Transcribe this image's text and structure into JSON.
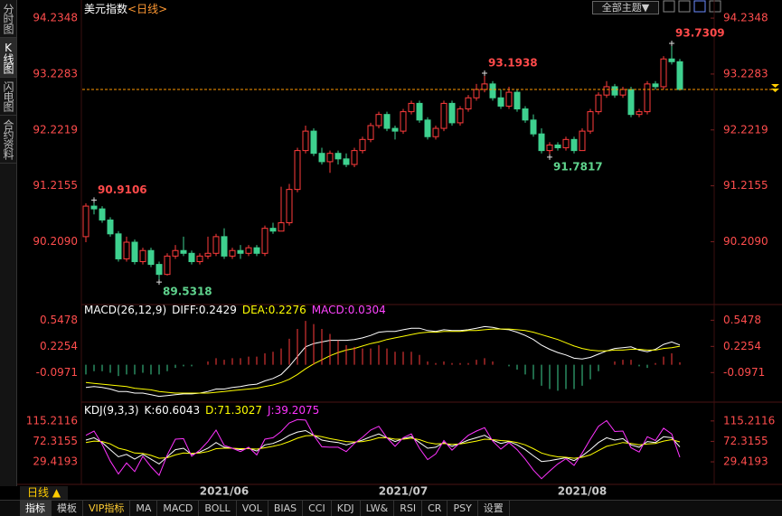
{
  "ui": {
    "title": "美元指数",
    "period": "<日线>",
    "theme_button": "全部主题▼",
    "sidebar": [
      "分时图",
      "K线图",
      "闪电图",
      "合约资料"
    ],
    "period_switch": "日线 ▲",
    "tabs": [
      "指标",
      "模板",
      "VIP指标",
      "MA",
      "MACD",
      "BOLL",
      "VOL",
      "BIAS",
      "CCI",
      "KDJ",
      "LW&",
      "RSI",
      "CR",
      "PSY",
      "设置"
    ]
  },
  "chart_data": [
    {
      "type": "candlestick",
      "up_color": "#ff3c3c",
      "down_color": "#3ed18f",
      "last_price_color": "#ff9900",
      "ylim": [
        89.11,
        94.48
      ],
      "yticks": [
        94.2348,
        93.2283,
        92.2219,
        91.2155,
        {
          "value": 90.209,
          "label": "90.2090"
        }
      ],
      "categories": [
        null,
        null,
        null,
        null,
        null,
        null,
        null,
        null,
        null,
        null,
        null,
        null,
        null,
        null,
        null,
        null,
        null,
        "2021/06",
        null,
        null,
        null,
        null,
        null,
        null,
        null,
        null,
        null,
        null,
        null,
        null,
        null,
        null,
        null,
        null,
        null,
        null,
        null,
        null,
        null,
        "2021/07",
        null,
        null,
        null,
        null,
        null,
        null,
        null,
        null,
        null,
        null,
        null,
        null,
        null,
        null,
        null,
        null,
        null,
        null,
        null,
        null,
        null,
        "2021/08",
        null,
        null,
        null,
        null,
        null,
        null,
        null,
        null,
        null,
        null,
        null,
        null
      ],
      "open": [
        90.3,
        90.85,
        90.8,
        90.6,
        90.35,
        89.9,
        90.2,
        89.85,
        90.05,
        89.8,
        89.62,
        89.95,
        90.05,
        90.0,
        89.85,
        89.95,
        90.0,
        90.3,
        89.95,
        90.05,
        90.0,
        90.1,
        90.0,
        90.45,
        90.4,
        90.55,
        91.15,
        91.85,
        92.2,
        91.8,
        91.65,
        91.8,
        91.7,
        91.6,
        91.85,
        92.05,
        92.3,
        92.5,
        92.25,
        92.2,
        92.55,
        92.7,
        92.4,
        92.1,
        92.25,
        92.7,
        92.35,
        92.6,
        92.8,
        92.95,
        93.05,
        92.8,
        92.65,
        92.9,
        92.6,
        92.4,
        92.15,
        91.85,
        91.95,
        91.9,
        92.05,
        91.85,
        92.2,
        92.55,
        92.85,
        93.0,
        92.85,
        92.95,
        92.5,
        92.55,
        93.05,
        93.0,
        93.5,
        93.45
      ],
      "high": [
        90.9,
        90.9106,
        90.85,
        90.65,
        90.4,
        90.3,
        90.25,
        90.1,
        90.1,
        89.85,
        90.0,
        90.15,
        90.3,
        90.05,
        90.0,
        90.3,
        90.35,
        90.45,
        90.1,
        90.15,
        90.15,
        90.15,
        90.5,
        90.55,
        91.2,
        91.25,
        91.9,
        92.3,
        92.25,
        91.9,
        91.85,
        91.85,
        91.8,
        91.9,
        92.1,
        92.35,
        92.55,
        92.55,
        92.3,
        92.6,
        92.75,
        92.75,
        92.45,
        92.3,
        92.75,
        92.75,
        92.65,
        92.85,
        93.05,
        93.1938,
        93.1,
        92.95,
        93.0,
        92.95,
        92.65,
        92.5,
        92.25,
        92.0,
        92.0,
        92.1,
        92.1,
        92.25,
        92.6,
        92.9,
        93.1,
        93.05,
        93.0,
        93.0,
        92.6,
        93.1,
        93.1,
        93.55,
        93.7309,
        93.5
      ],
      "low": [
        90.2,
        90.7,
        90.55,
        90.3,
        89.85,
        89.85,
        89.8,
        89.8,
        89.75,
        89.5318,
        89.6,
        89.9,
        89.95,
        89.8,
        89.8,
        89.9,
        89.95,
        89.9,
        89.9,
        89.9,
        89.95,
        89.95,
        89.95,
        90.35,
        90.4,
        90.5,
        91.1,
        91.8,
        91.75,
        91.6,
        91.45,
        91.6,
        91.55,
        91.55,
        91.8,
        92.0,
        92.25,
        92.2,
        92.05,
        92.15,
        92.5,
        92.35,
        92.05,
        92.05,
        92.2,
        92.3,
        92.3,
        92.55,
        92.75,
        92.9,
        92.75,
        92.6,
        92.6,
        92.55,
        92.35,
        92.1,
        91.8,
        91.7817,
        91.85,
        91.85,
        91.8,
        91.85,
        92.15,
        92.5,
        92.8,
        92.8,
        92.8,
        92.45,
        92.45,
        92.5,
        92.95,
        92.95,
        93.4,
        92.93
      ],
      "close": [
        90.85,
        90.8,
        90.6,
        90.35,
        89.9,
        90.2,
        89.85,
        90.05,
        89.8,
        89.62,
        89.95,
        90.05,
        90.0,
        89.85,
        89.95,
        90.0,
        90.3,
        89.95,
        90.05,
        90.0,
        90.1,
        90.0,
        90.45,
        90.4,
        90.55,
        91.15,
        91.85,
        92.2,
        91.8,
        91.65,
        91.8,
        91.7,
        91.6,
        91.85,
        92.05,
        92.3,
        92.5,
        92.25,
        92.2,
        92.55,
        92.7,
        92.4,
        92.1,
        92.25,
        92.7,
        92.35,
        92.6,
        92.8,
        92.95,
        93.05,
        92.8,
        92.65,
        92.9,
        92.6,
        92.4,
        92.15,
        91.85,
        91.95,
        91.9,
        92.05,
        91.85,
        92.2,
        92.55,
        92.85,
        93.0,
        92.85,
        92.95,
        92.5,
        92.55,
        93.05,
        93.0,
        93.5,
        93.45,
        92.95
      ]
    },
    {
      "type": "macd",
      "indicator": "MACD(26,12,9)",
      "up_color": "#ff3c3c",
      "down_color": "#3ed18f",
      "ylim": [
        -0.45,
        0.73
      ],
      "yticks": [
        0.5478,
        0.2254,
        -0.0971
      ],
      "series": [
        {
          "name": "DIFF:",
          "color": "#ffffff",
          "style": "line",
          "values": [
            -0.28,
            -0.27,
            -0.28,
            -0.3,
            -0.33,
            -0.33,
            -0.35,
            -0.35,
            -0.37,
            -0.39,
            -0.38,
            -0.37,
            -0.36,
            -0.36,
            -0.35,
            -0.33,
            -0.3,
            -0.3,
            -0.28,
            -0.27,
            -0.25,
            -0.24,
            -0.2,
            -0.17,
            -0.12,
            -0.02,
            0.1,
            0.22,
            0.26,
            0.28,
            0.3,
            0.3,
            0.3,
            0.31,
            0.33,
            0.36,
            0.4,
            0.41,
            0.41,
            0.43,
            0.45,
            0.45,
            0.42,
            0.41,
            0.43,
            0.42,
            0.42,
            0.43,
            0.45,
            0.47,
            0.46,
            0.44,
            0.43,
            0.4,
            0.36,
            0.31,
            0.24,
            0.19,
            0.15,
            0.12,
            0.08,
            0.07,
            0.09,
            0.13,
            0.17,
            0.2,
            0.21,
            0.22,
            0.18,
            0.16,
            0.19,
            0.25,
            0.28,
            0.2429
          ]
        },
        {
          "name": "DEA:",
          "color": "#ffff00",
          "style": "line",
          "values": [
            -0.22,
            -0.23,
            -0.24,
            -0.25,
            -0.26,
            -0.27,
            -0.29,
            -0.3,
            -0.31,
            -0.33,
            -0.34,
            -0.35,
            -0.35,
            -0.35,
            -0.35,
            -0.35,
            -0.34,
            -0.33,
            -0.32,
            -0.31,
            -0.3,
            -0.29,
            -0.27,
            -0.25,
            -0.22,
            -0.18,
            -0.12,
            -0.05,
            0.01,
            0.06,
            0.11,
            0.15,
            0.18,
            0.2,
            0.23,
            0.26,
            0.28,
            0.31,
            0.33,
            0.35,
            0.37,
            0.39,
            0.4,
            0.4,
            0.41,
            0.41,
            0.41,
            0.42,
            0.42,
            0.43,
            0.44,
            0.44,
            0.44,
            0.43,
            0.42,
            0.4,
            0.37,
            0.34,
            0.31,
            0.27,
            0.23,
            0.2,
            0.18,
            0.17,
            0.17,
            0.18,
            0.18,
            0.19,
            0.19,
            0.18,
            0.18,
            0.2,
            0.21,
            0.2276
          ]
        },
        {
          "name": "MACD:",
          "color": "#ff44ff",
          "style": "bar",
          "values": [
            -0.12,
            -0.08,
            -0.08,
            -0.1,
            -0.14,
            -0.12,
            -0.12,
            -0.1,
            -0.12,
            -0.12,
            -0.08,
            -0.04,
            -0.02,
            -0.02,
            0,
            0.04,
            0.08,
            0.06,
            0.08,
            0.08,
            0.1,
            0.1,
            0.14,
            0.16,
            0.2,
            0.32,
            0.44,
            0.54,
            0.5,
            0.44,
            0.38,
            0.3,
            0.24,
            0.22,
            0.2,
            0.2,
            0.24,
            0.2,
            0.16,
            0.16,
            0.16,
            0.12,
            0.04,
            0.02,
            0.04,
            0.02,
            0.02,
            0.02,
            0.06,
            0.08,
            0.04,
            0,
            -0.02,
            -0.06,
            -0.12,
            -0.18,
            -0.26,
            -0.3,
            -0.32,
            -0.3,
            -0.3,
            -0.26,
            -0.18,
            -0.08,
            0,
            0.04,
            0.06,
            0.06,
            -0.02,
            -0.04,
            0.02,
            0.1,
            0.14,
            0.0304
          ]
        }
      ]
    },
    {
      "type": "line",
      "indicator": "KDJ(9,3,3)",
      "ylim": [
        -16,
        149
      ],
      "yticks": [
        115.2116,
        72.3155,
        29.4193
      ],
      "series": [
        {
          "name": "K:",
          "color": "#ffffff",
          "values": [
            75,
            80,
            70,
            55,
            40,
            45,
            35,
            45,
            35,
            25,
            40,
            55,
            58,
            45,
            50,
            58,
            70,
            60,
            58,
            55,
            58,
            52,
            65,
            68,
            75,
            85,
            92,
            95,
            85,
            75,
            72,
            70,
            65,
            70,
            75,
            82,
            88,
            80,
            72,
            78,
            82,
            70,
            58,
            60,
            70,
            62,
            68,
            75,
            80,
            85,
            75,
            68,
            72,
            65,
            55,
            42,
            30,
            32,
            35,
            38,
            32,
            42,
            55,
            70,
            80,
            75,
            78,
            65,
            60,
            72,
            70,
            82,
            80,
            60.6043
          ]
        },
        {
          "name": "D:",
          "color": "#ffff00",
          "values": [
            70,
            73,
            72,
            67,
            58,
            54,
            48,
            47,
            43,
            37,
            38,
            44,
            48,
            47,
            48,
            51,
            57,
            58,
            58,
            57,
            57,
            56,
            59,
            62,
            66,
            72,
            79,
            84,
            85,
            82,
            78,
            75,
            72,
            71,
            72,
            75,
            80,
            80,
            77,
            77,
            79,
            76,
            70,
            67,
            68,
            66,
            67,
            70,
            73,
            77,
            76,
            74,
            73,
            70,
            65,
            57,
            48,
            43,
            40,
            39,
            37,
            39,
            44,
            53,
            62,
            66,
            70,
            68,
            65,
            67,
            68,
            73,
            76,
            71.3027
          ]
        },
        {
          "name": "J:",
          "color": "#ff33ff",
          "values": [
            85,
            94,
            66,
            31,
            4,
            27,
            9,
            41,
            19,
            1,
            44,
            77,
            78,
            41,
            54,
            72,
            96,
            64,
            58,
            51,
            60,
            44,
            77,
            80,
            93,
            111,
            118,
            117,
            85,
            61,
            60,
            60,
            51,
            68,
            81,
            96,
            104,
            80,
            62,
            80,
            88,
            58,
            34,
            46,
            74,
            54,
            70,
            85,
            94,
            101,
            73,
            56,
            70,
            55,
            35,
            12,
            -6,
            10,
            25,
            36,
            22,
            48,
            77,
            104,
            116,
            93,
            94,
            59,
            50,
            82,
            74,
            100,
            88,
            39.2075
          ]
        }
      ]
    }
  ]
}
